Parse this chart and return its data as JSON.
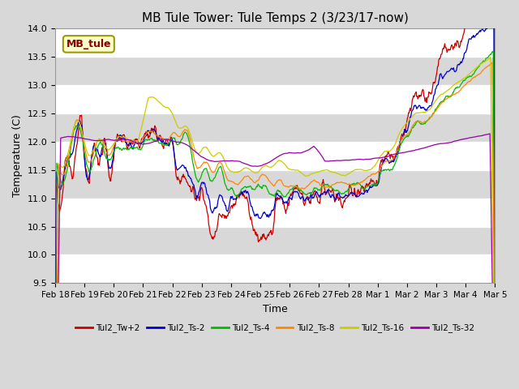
{
  "title": "MB Tule Tower: Tule Temps 2 (3/23/17-now)",
  "xlabel": "Time",
  "ylabel": "Temperature (C)",
  "ylim": [
    9.5,
    14.0
  ],
  "fig_bg_color": "#d8d8d8",
  "plot_bg_color": "#d8d8d8",
  "grid_color": "#bbbbbb",
  "legend_label": "MB_tule",
  "legend_box_color": "#ffffcc",
  "legend_box_edge": "#999900",
  "legend_text_color": "#880000",
  "series_colors": [
    "#cc0000",
    "#0000cc",
    "#00bb00",
    "#ff8800",
    "#cccc00",
    "#9900aa"
  ],
  "series_labels": [
    "Tul2_Tw+2",
    "Tul2_Ts-2",
    "Tul2_Ts-4",
    "Tul2_Ts-8",
    "Tul2_Ts-16",
    "Tul2_Ts-32"
  ],
  "x_tick_labels": [
    "Feb 18",
    "Feb 19",
    "Feb 20",
    "Feb 21",
    "Feb 22",
    "Feb 23",
    "Feb 24",
    "Feb 25",
    "Feb 26",
    "Feb 27",
    "Feb 28",
    "Mar 1",
    "Mar 2",
    "Mar 3",
    "Mar 4",
    "Mar 5"
  ],
  "yticks": [
    9.5,
    10.0,
    10.5,
    11.0,
    11.5,
    12.0,
    12.5,
    13.0,
    13.5,
    14.0
  ]
}
